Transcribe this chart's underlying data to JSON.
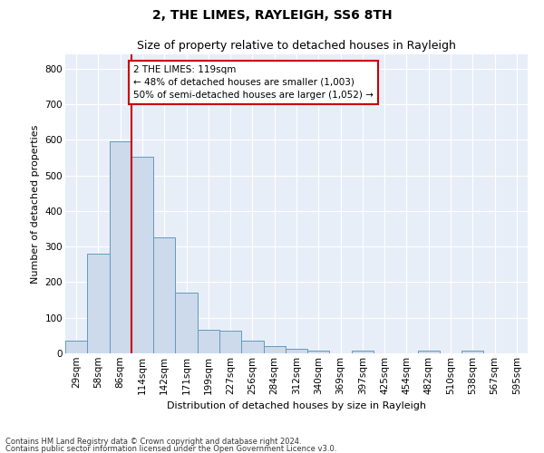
{
  "title": "2, THE LIMES, RAYLEIGH, SS6 8TH",
  "subtitle": "Size of property relative to detached houses in Rayleigh",
  "xlabel": "Distribution of detached houses by size in Rayleigh",
  "ylabel": "Number of detached properties",
  "bar_labels": [
    "29sqm",
    "58sqm",
    "86sqm",
    "114sqm",
    "142sqm",
    "171sqm",
    "199sqm",
    "227sqm",
    "256sqm",
    "284sqm",
    "312sqm",
    "340sqm",
    "369sqm",
    "397sqm",
    "425sqm",
    "454sqm",
    "482sqm",
    "510sqm",
    "538sqm",
    "567sqm",
    "595sqm"
  ],
  "bar_values": [
    35,
    280,
    595,
    553,
    325,
    170,
    65,
    63,
    35,
    20,
    12,
    8,
    0,
    8,
    0,
    0,
    8,
    0,
    8,
    0,
    0
  ],
  "bar_color": "#ccdaeb",
  "bar_edge_color": "#6699bb",
  "red_line_x": 2.5,
  "annotation_line1": "2 THE LIMES: 119sqm",
  "annotation_line2": "← 48% of detached houses are smaller (1,003)",
  "annotation_line3": "50% of semi-detached houses are larger (1,052) →",
  "annotation_box_color": "#ffffff",
  "annotation_box_edge": "#cc0000",
  "red_line_color": "#cc0000",
  "ylim": [
    0,
    840
  ],
  "yticks": [
    0,
    100,
    200,
    300,
    400,
    500,
    600,
    700,
    800
  ],
  "footnote1": "Contains HM Land Registry data © Crown copyright and database right 2024.",
  "footnote2": "Contains public sector information licensed under the Open Government Licence v3.0.",
  "plot_bg_color": "#e8eef8",
  "title_fontsize": 10,
  "subtitle_fontsize": 9,
  "axis_label_fontsize": 8,
  "tick_fontsize": 7.5,
  "annotation_fontsize": 7.5
}
